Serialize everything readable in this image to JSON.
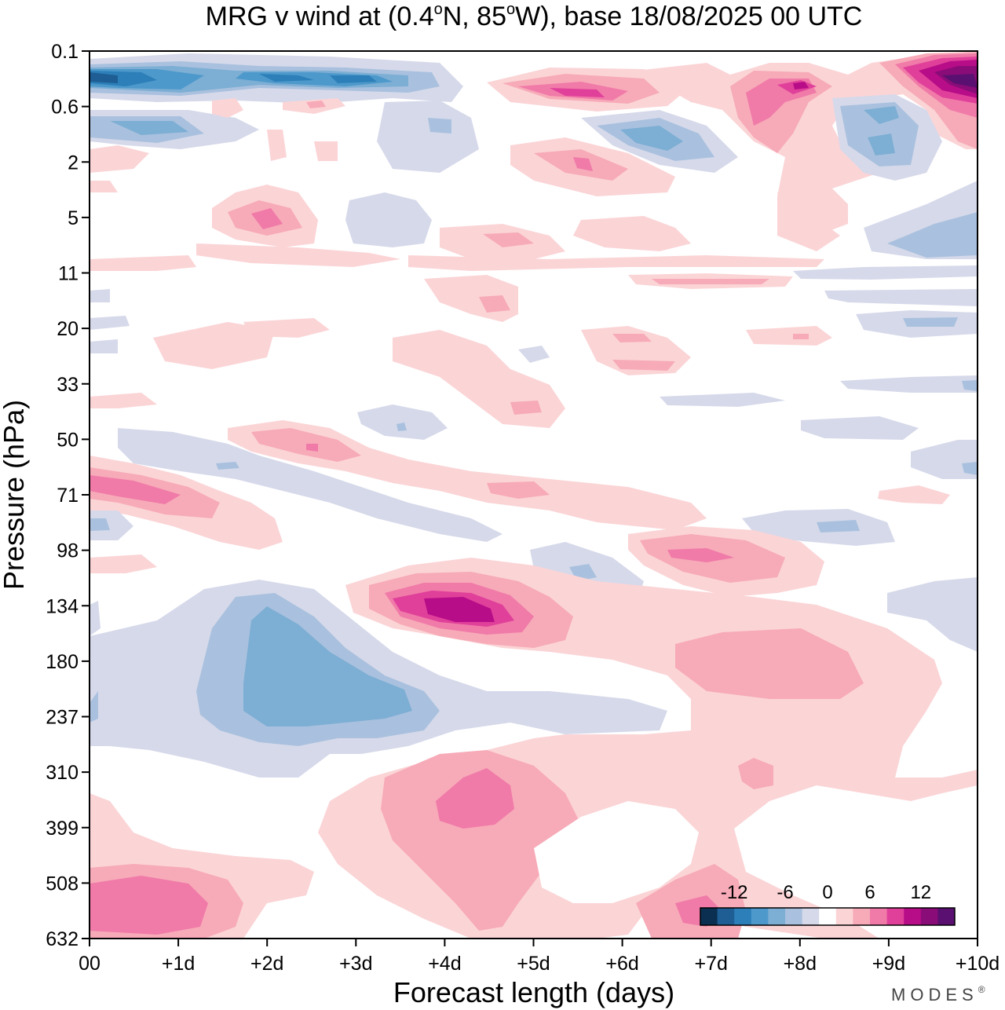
{
  "chart_data": {
    "type": "heatmap",
    "title": "MRG v wind at (0.4°N, 85°W),  base 18/08/2025  00 UTC",
    "title_parts": {
      "lead": "MRG v wind at (0.4",
      "mid1": "N, 85",
      "mid2": "W),  base 18/08/2025  00 UTC",
      "degree_mark": "o"
    },
    "xlabel": "Forecast length (days)",
    "ylabel": "Pressure (hPa)",
    "x_ticks": [
      "00",
      "+1d",
      "+2d",
      "+3d",
      "+4d",
      "+5d",
      "+6d",
      "+7d",
      "+8d",
      "+9d",
      "+10d"
    ],
    "xlim": [
      0,
      10
    ],
    "y_ticks": [
      "0.1",
      "0.6",
      "2",
      "5",
      "11",
      "20",
      "33",
      "50",
      "71",
      "98",
      "134",
      "180",
      "237",
      "310",
      "399",
      "508",
      "632"
    ],
    "y_axis": "log-pressure, increasing downward",
    "colorbar": {
      "tick_labels": [
        "-12",
        "-6",
        "0",
        "6",
        "12"
      ],
      "tick_values": [
        -12,
        -6,
        0,
        6,
        12
      ],
      "levels": [
        -14,
        -12,
        -10,
        -8,
        -6,
        -4,
        -2,
        2,
        4,
        6,
        8,
        10,
        12,
        14
      ],
      "colors": [
        "#0b2f50",
        "#1f5e95",
        "#2c7fb8",
        "#4e99cb",
        "#7daed4",
        "#a9c1de",
        "#d6d9ea",
        "#ffffff",
        "#fbd4d6",
        "#f7aab8",
        "#f07aa8",
        "#e0409a",
        "#b80d88",
        "#8a0c78",
        "#5a1070"
      ]
    },
    "features": [
      {
        "day": 0.6,
        "pressure": 0.3,
        "value": -13
      },
      {
        "day": 3.0,
        "pressure": 0.3,
        "value": -12
      },
      {
        "day": 9.8,
        "pressure": 0.35,
        "value": 15
      },
      {
        "day": 5.5,
        "pressure": 0.45,
        "value": 10
      },
      {
        "day": 8.0,
        "pressure": 0.4,
        "value": 11
      },
      {
        "day": 2.0,
        "pressure": 4.5,
        "value": 9
      },
      {
        "day": 4.0,
        "pressure": 1.5,
        "value": -3
      },
      {
        "day": 0.3,
        "pressure": 68,
        "value": 9
      },
      {
        "day": 7.0,
        "pressure": 100,
        "value": 8
      },
      {
        "day": 4.2,
        "pressure": 130,
        "value": 13
      },
      {
        "day": 2.5,
        "pressure": 195,
        "value": -8
      },
      {
        "day": 4.5,
        "pressure": 350,
        "value": 9
      },
      {
        "day": 0.8,
        "pressure": 560,
        "value": 8
      },
      {
        "day": 7.5,
        "pressure": 180,
        "value": 5
      }
    ]
  },
  "logo": {
    "text": "MODES",
    "mark": "®"
  }
}
